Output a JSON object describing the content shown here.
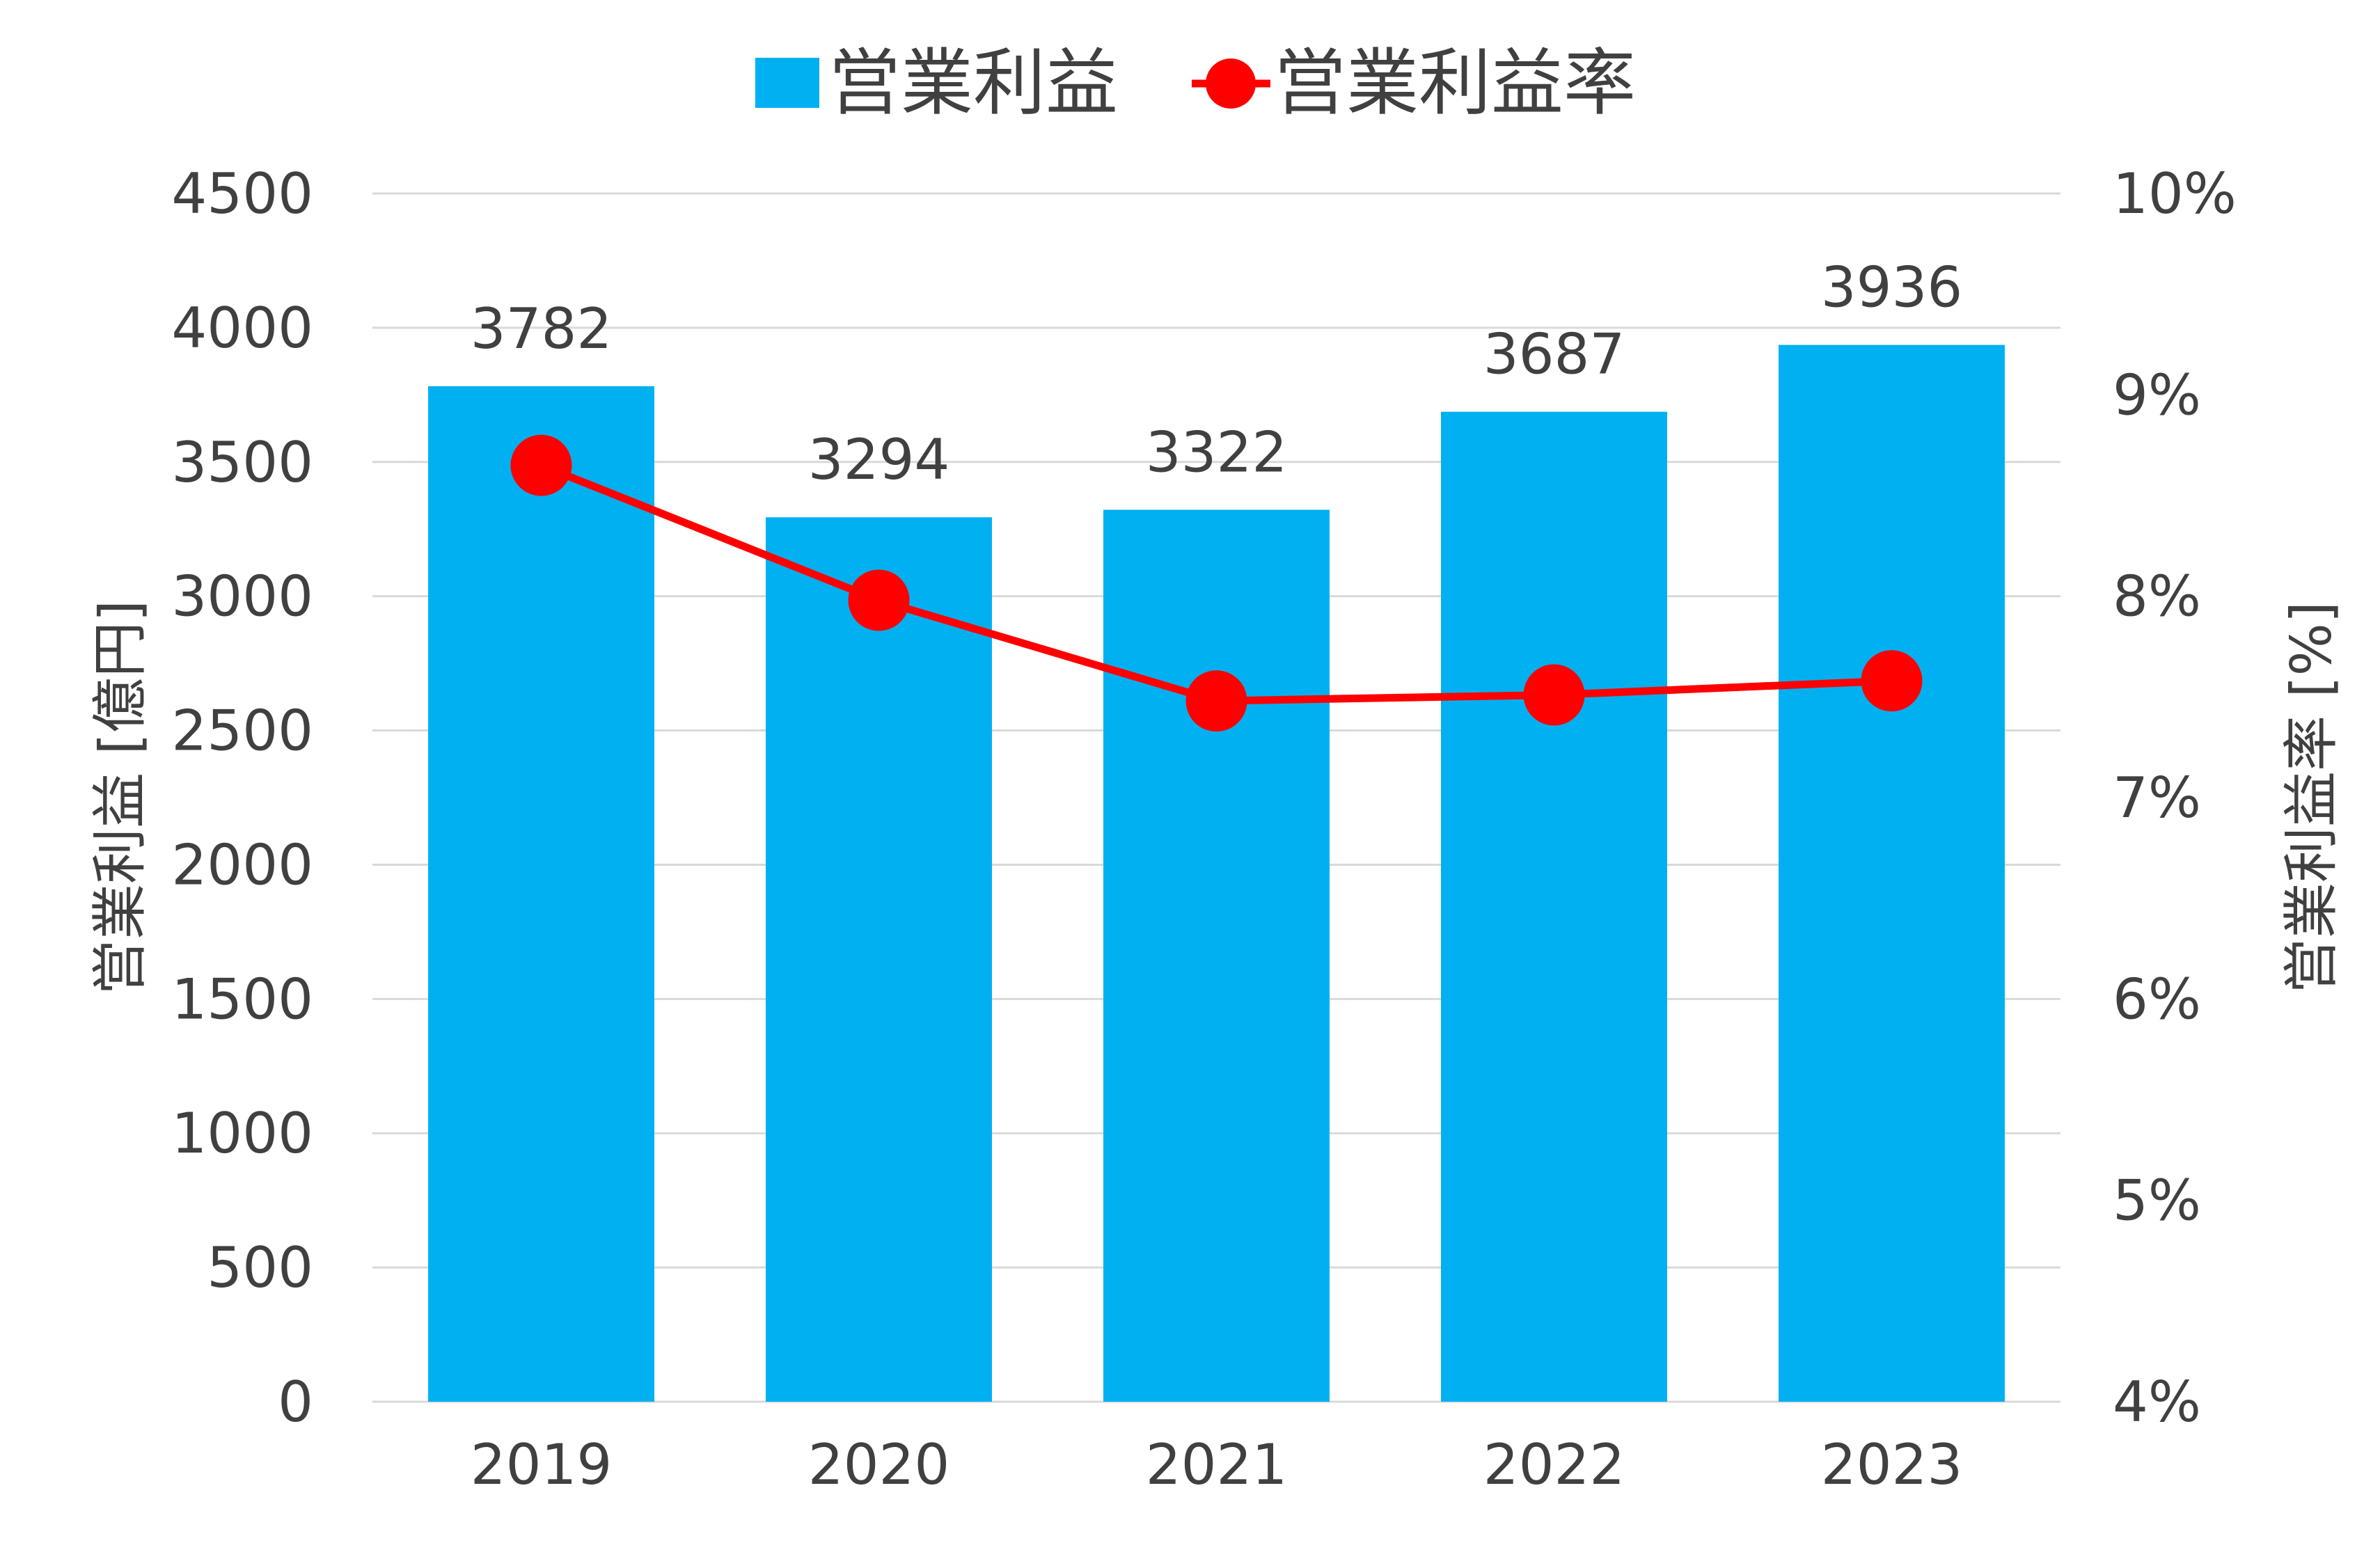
{
  "chart_data": {
    "type": "bar",
    "categories": [
      "2019",
      "2020",
      "2021",
      "2022",
      "2023"
    ],
    "series": [
      {
        "name": "営業利益",
        "type": "bar",
        "axis": "left",
        "values": [
          3782,
          3294,
          3322,
          3687,
          3936
        ],
        "data_labels": [
          "3782",
          "3294",
          "3322",
          "3687",
          "3936"
        ],
        "color": "#00B0F0"
      },
      {
        "name": "営業利益率",
        "type": "line",
        "axis": "right",
        "values": [
          8.65,
          7.98,
          7.48,
          7.51,
          7.58
        ],
        "color": "#FF0000"
      }
    ],
    "y_left": {
      "label": "営業利益 [億円]",
      "ylim": [
        0,
        4500
      ],
      "ticks": [
        0,
        500,
        1000,
        1500,
        2000,
        2500,
        3000,
        3500,
        4000,
        4500
      ],
      "tick_labels": [
        "0",
        "500",
        "1000",
        "1500",
        "2000",
        "2500",
        "3000",
        "3500",
        "4000",
        "4500"
      ]
    },
    "y_right": {
      "label": "営業利益率 [%]",
      "ylim": [
        4,
        10
      ],
      "ticks": [
        4,
        5,
        6,
        7,
        8,
        9,
        10
      ],
      "tick_labels": [
        "4%",
        "5%",
        "6%",
        "7%",
        "8%",
        "9%",
        "10%"
      ]
    },
    "legend_position": "top",
    "grid": true,
    "colors": {
      "grid": "#D9D9D9",
      "text": "#404040"
    }
  }
}
